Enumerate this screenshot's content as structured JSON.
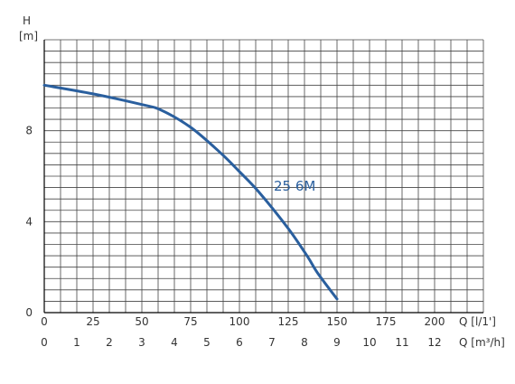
{
  "chart_data": {
    "type": "line",
    "y_axis": {
      "title_line1": "H",
      "title_line2": "[m]",
      "ticks": [
        "0",
        "4",
        "8"
      ],
      "ylim": [
        0,
        12
      ]
    },
    "x_axis_primary": {
      "title": "Q [l/1']",
      "ticks": [
        "0",
        "25",
        "50",
        "75",
        "100",
        "125",
        "150",
        "175",
        "200"
      ],
      "xlim": [
        0,
        225
      ]
    },
    "x_axis_secondary": {
      "title": "Q [m³/h]",
      "ticks": [
        "0",
        "1",
        "2",
        "3",
        "4",
        "5",
        "6",
        "7",
        "8",
        "9",
        "10",
        "11",
        "12"
      ],
      "xlim": [
        0,
        13.5
      ]
    },
    "grid": true,
    "series": [
      {
        "name": "25 6M",
        "color": "#2a5f9e",
        "x_l_per_min": [
          0,
          25,
          50,
          60,
          75,
          90,
          100,
          110,
          125,
          135,
          140,
          150
        ],
        "y_m": [
          10.0,
          9.62,
          9.15,
          8.9,
          8.15,
          7.05,
          6.2,
          5.3,
          3.7,
          2.45,
          1.75,
          0.6
        ]
      }
    ]
  }
}
